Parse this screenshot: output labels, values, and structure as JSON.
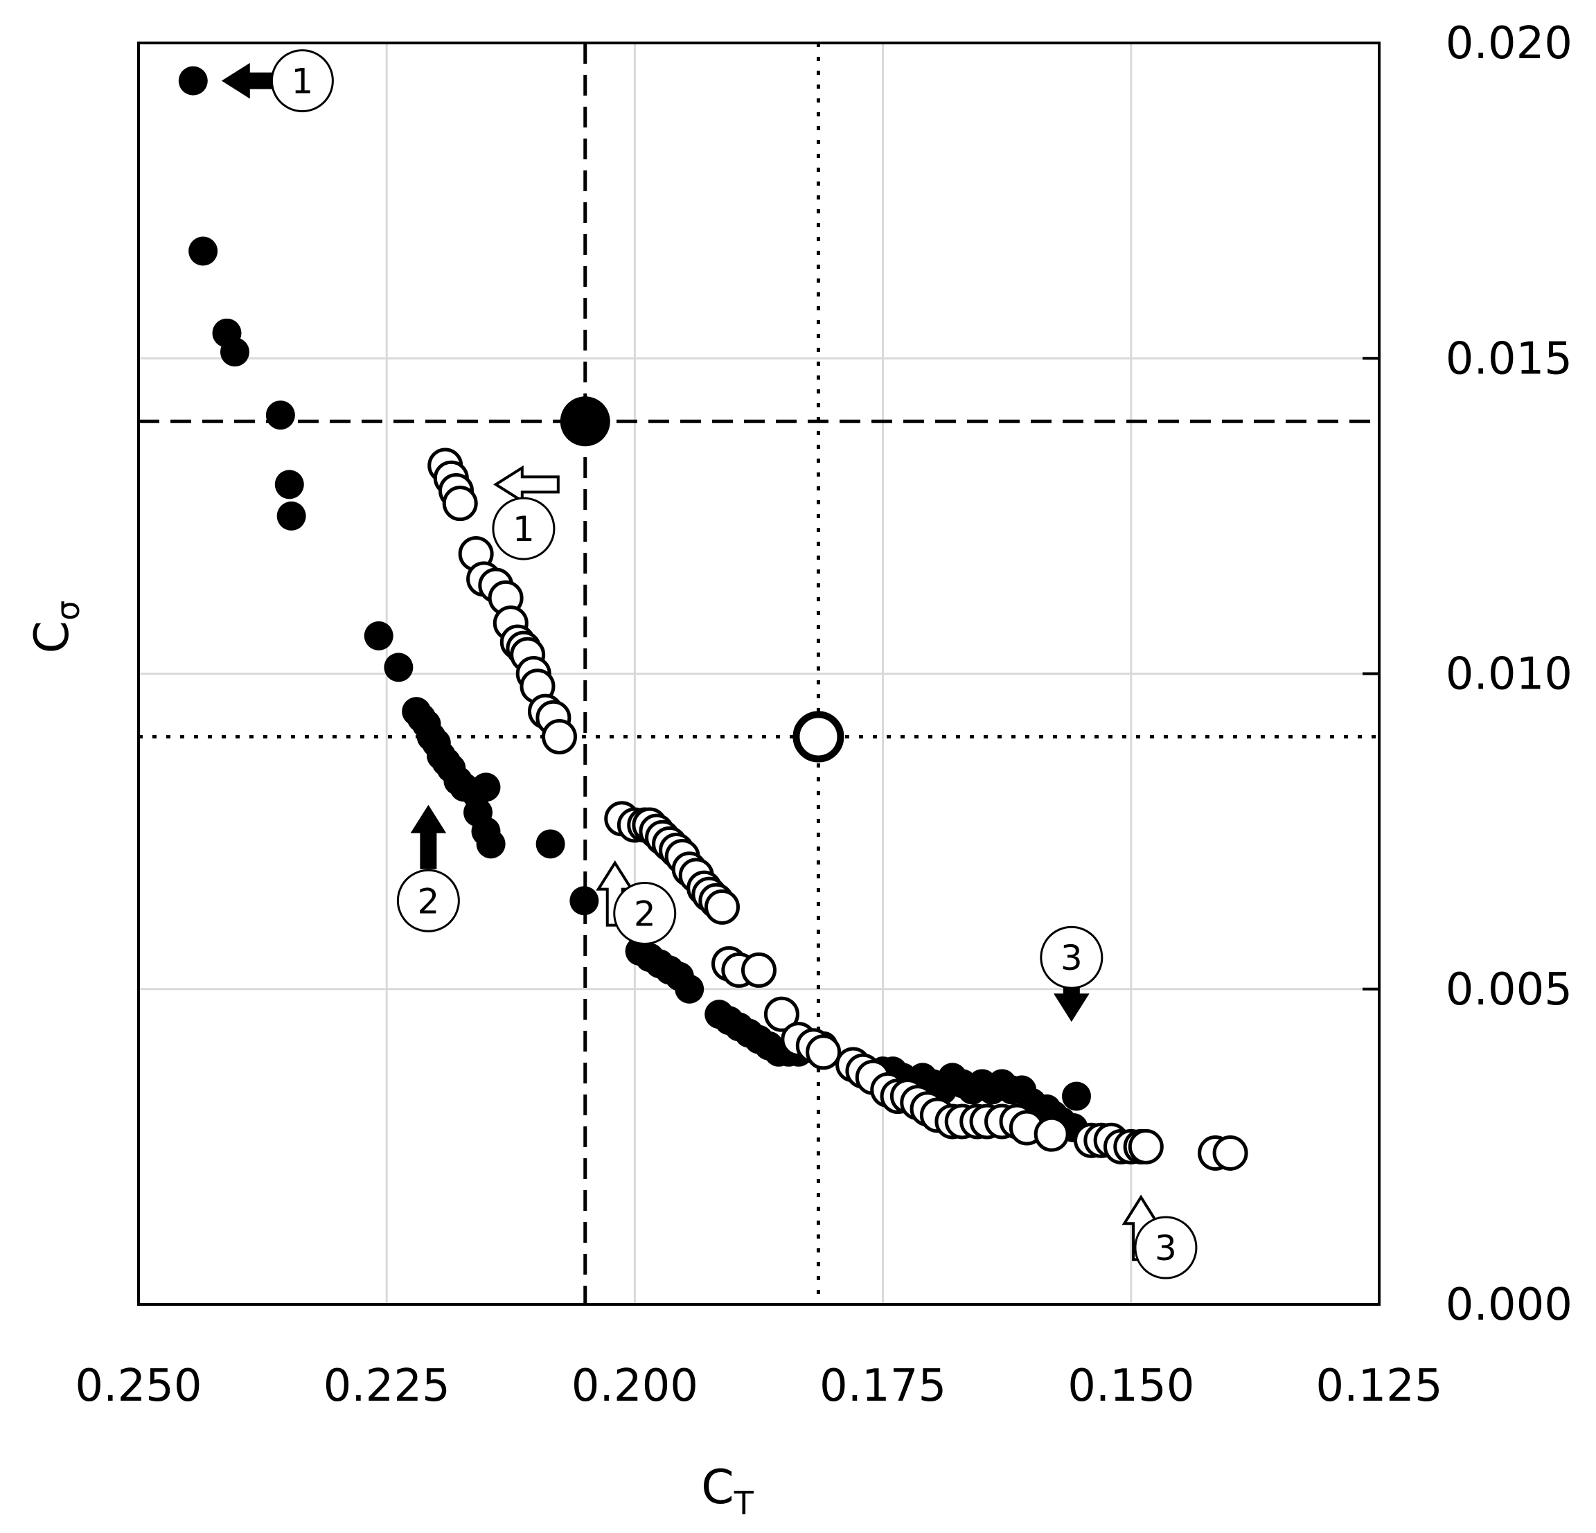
{
  "chart_data": {
    "type": "scatter",
    "title": "",
    "xlabel": {
      "main": "C",
      "sub": "T"
    },
    "ylabel": {
      "main": "C",
      "sub": "σ"
    },
    "xlim": [
      0.25,
      0.125
    ],
    "ylim": [
      0.0,
      0.02
    ],
    "x_reversed": true,
    "y_axis_side": "right",
    "grid": true,
    "xticks": [
      0.25,
      0.225,
      0.2,
      0.175,
      0.15,
      0.125
    ],
    "xtick_labels": [
      "0.250",
      "0.225",
      "0.200",
      "0.175",
      "0.150",
      "0.125"
    ],
    "yticks": [
      0.0,
      0.005,
      0.01,
      0.015,
      0.02
    ],
    "ytick_labels": [
      "0.000",
      "0.005",
      "0.010",
      "0.015",
      "0.020"
    ],
    "series": [
      {
        "style": "filled",
        "color": "#000000",
        "points": [
          [
            0.2445,
            0.0194
          ],
          [
            0.2435,
            0.0167
          ],
          [
            0.2411,
            0.0154
          ],
          [
            0.2403,
            0.0151
          ],
          [
            0.2357,
            0.0141
          ],
          [
            0.2348,
            0.013
          ],
          [
            0.2346,
            0.0125
          ],
          [
            0.2258,
            0.0106
          ],
          [
            0.2238,
            0.0101
          ],
          [
            0.222,
            0.0094
          ],
          [
            0.2215,
            0.0093
          ],
          [
            0.221,
            0.0092
          ],
          [
            0.2205,
            0.009
          ],
          [
            0.22,
            0.0089
          ],
          [
            0.2195,
            0.0087
          ],
          [
            0.219,
            0.0086
          ],
          [
            0.2185,
            0.0085
          ],
          [
            0.2178,
            0.0083
          ],
          [
            0.2172,
            0.0082
          ],
          [
            0.216,
            0.0081
          ],
          [
            0.215,
            0.0082
          ],
          [
            0.2158,
            0.0078
          ],
          [
            0.215,
            0.0075
          ],
          [
            0.2145,
            0.0073
          ],
          [
            0.2085,
            0.0073
          ],
          [
            0.2051,
            0.0064
          ],
          [
            0.1995,
            0.0056
          ],
          [
            0.1985,
            0.0055
          ],
          [
            0.1975,
            0.0054
          ],
          [
            0.1965,
            0.0053
          ],
          [
            0.1955,
            0.0052
          ],
          [
            0.1945,
            0.005
          ],
          [
            0.1915,
            0.0046
          ],
          [
            0.1905,
            0.0045
          ],
          [
            0.1895,
            0.0044
          ],
          [
            0.1885,
            0.0043
          ],
          [
            0.1875,
            0.0042
          ],
          [
            0.1865,
            0.0041
          ],
          [
            0.1855,
            0.004
          ],
          [
            0.1845,
            0.004
          ],
          [
            0.1835,
            0.004
          ],
          [
            0.181,
            0.0041
          ],
          [
            0.178,
            0.0038
          ],
          [
            0.177,
            0.0037
          ],
          [
            0.175,
            0.0037
          ],
          [
            0.174,
            0.0037
          ],
          [
            0.173,
            0.0036
          ],
          [
            0.172,
            0.0035
          ],
          [
            0.171,
            0.0036
          ],
          [
            0.17,
            0.0035
          ],
          [
            0.169,
            0.0034
          ],
          [
            0.168,
            0.0036
          ],
          [
            0.167,
            0.0035
          ],
          [
            0.166,
            0.0034
          ],
          [
            0.165,
            0.0035
          ],
          [
            0.164,
            0.0034
          ],
          [
            0.163,
            0.0035
          ],
          [
            0.162,
            0.0034
          ],
          [
            0.161,
            0.0034
          ],
          [
            0.16,
            0.0032
          ],
          [
            0.1585,
            0.0031
          ],
          [
            0.1578,
            0.003
          ],
          [
            0.157,
            0.0029
          ],
          [
            0.1558,
            0.0028
          ],
          [
            0.1555,
            0.0033
          ]
        ]
      },
      {
        "style": "open",
        "color": "#000000",
        "points": [
          [
            0.2191,
            0.0133
          ],
          [
            0.2185,
            0.0131
          ],
          [
            0.218,
            0.0129
          ],
          [
            0.2176,
            0.0127
          ],
          [
            0.216,
            0.0119
          ],
          [
            0.2152,
            0.0115
          ],
          [
            0.214,
            0.0114
          ],
          [
            0.213,
            0.0112
          ],
          [
            0.2125,
            0.0108
          ],
          [
            0.2118,
            0.0105
          ],
          [
            0.2112,
            0.0104
          ],
          [
            0.2108,
            0.0103
          ],
          [
            0.2102,
            0.01
          ],
          [
            0.2098,
            0.0098
          ],
          [
            0.209,
            0.0094
          ],
          [
            0.2082,
            0.0093
          ],
          [
            0.2076,
            0.009
          ],
          [
            0.2013,
            0.0077
          ],
          [
            0.2,
            0.0076
          ],
          [
            0.199,
            0.0076
          ],
          [
            0.1985,
            0.0076
          ],
          [
            0.1978,
            0.0075
          ],
          [
            0.1972,
            0.0074
          ],
          [
            0.1965,
            0.0073
          ],
          [
            0.1958,
            0.0072
          ],
          [
            0.1952,
            0.0071
          ],
          [
            0.1945,
            0.0069
          ],
          [
            0.1938,
            0.0068
          ],
          [
            0.193,
            0.0066
          ],
          [
            0.1925,
            0.0065
          ],
          [
            0.1918,
            0.0064
          ],
          [
            0.1912,
            0.0063
          ],
          [
            0.1905,
            0.0054
          ],
          [
            0.1895,
            0.0053
          ],
          [
            0.1875,
            0.0053
          ],
          [
            0.1852,
            0.0046
          ],
          [
            0.1835,
            0.0042
          ],
          [
            0.182,
            0.0041
          ],
          [
            0.181,
            0.004
          ],
          [
            0.178,
            0.0038
          ],
          [
            0.177,
            0.0037
          ],
          [
            0.176,
            0.0036
          ],
          [
            0.1745,
            0.0034
          ],
          [
            0.1735,
            0.0033
          ],
          [
            0.1725,
            0.0033
          ],
          [
            0.1715,
            0.0032
          ],
          [
            0.1705,
            0.0031
          ],
          [
            0.1695,
            0.003
          ],
          [
            0.168,
            0.0029
          ],
          [
            0.167,
            0.0029
          ],
          [
            0.1655,
            0.0029
          ],
          [
            0.1645,
            0.0029
          ],
          [
            0.163,
            0.0029
          ],
          [
            0.1615,
            0.0029
          ],
          [
            0.1605,
            0.0028
          ],
          [
            0.158,
            0.0027
          ],
          [
            0.154,
            0.0026
          ],
          [
            0.153,
            0.0026
          ],
          [
            0.152,
            0.0026
          ],
          [
            0.151,
            0.0025
          ],
          [
            0.15,
            0.0025
          ],
          [
            0.149,
            0.0025
          ],
          [
            0.1485,
            0.0025
          ],
          [
            0.1415,
            0.0024
          ],
          [
            0.14,
            0.0024
          ]
        ]
      }
    ],
    "highlight_points": [
      {
        "x": 0.205,
        "y": 0.014,
        "style": "filled"
      },
      {
        "x": 0.1815,
        "y": 0.009,
        "style": "open"
      }
    ],
    "reference_lines": [
      {
        "orientation": "vertical",
        "value": 0.205,
        "style": "dashed"
      },
      {
        "orientation": "horizontal",
        "value": 0.014,
        "style": "dashed"
      },
      {
        "orientation": "vertical",
        "value": 0.1815,
        "style": "dotted"
      },
      {
        "orientation": "horizontal",
        "value": 0.009,
        "style": "dotted"
      }
    ],
    "annotations": [
      {
        "label": "1",
        "arrow": "left",
        "arrow_style": "filled",
        "x": 0.2415,
        "y": 0.0194,
        "label_x": 0.2335,
        "label_y": 0.0194
      },
      {
        "label": "1",
        "arrow": "left",
        "arrow_style": "open",
        "x": 0.214,
        "y": 0.013,
        "label_x": 0.2112,
        "label_y": 0.0123
      },
      {
        "label": "2",
        "arrow": "up",
        "arrow_style": "filled",
        "x": 0.2208,
        "y": 0.0079,
        "label_x": 0.2208,
        "label_y": 0.0064
      },
      {
        "label": "2",
        "arrow": "up",
        "arrow_style": "open",
        "x": 0.202,
        "y": 0.007,
        "label_x": 0.199,
        "label_y": 0.0062
      },
      {
        "label": "3",
        "arrow": "down",
        "arrow_style": "filled",
        "x": 0.156,
        "y": 0.0045,
        "label_x": 0.156,
        "label_y": 0.0055
      },
      {
        "label": "3",
        "arrow": "up",
        "arrow_style": "open",
        "x": 0.149,
        "y": 0.0017,
        "label_x": 0.1465,
        "label_y": 0.0009
      }
    ]
  }
}
